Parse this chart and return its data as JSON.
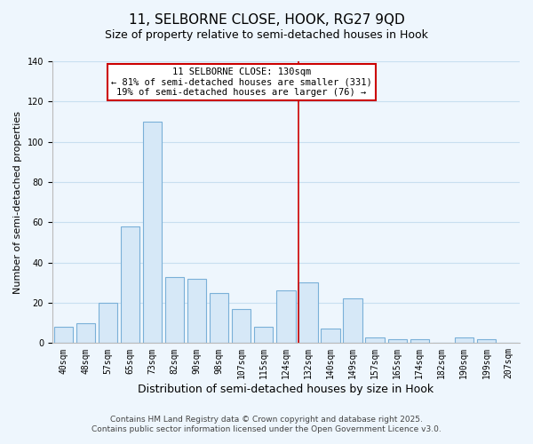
{
  "title": "11, SELBORNE CLOSE, HOOK, RG27 9QD",
  "subtitle": "Size of property relative to semi-detached houses in Hook",
  "xlabel": "Distribution of semi-detached houses by size in Hook",
  "ylabel": "Number of semi-detached properties",
  "bar_labels": [
    "40sqm",
    "48sqm",
    "57sqm",
    "65sqm",
    "73sqm",
    "82sqm",
    "90sqm",
    "98sqm",
    "107sqm",
    "115sqm",
    "124sqm",
    "132sqm",
    "140sqm",
    "149sqm",
    "157sqm",
    "165sqm",
    "174sqm",
    "182sqm",
    "190sqm",
    "199sqm",
    "207sqm"
  ],
  "bar_heights": [
    8,
    10,
    20,
    58,
    110,
    33,
    32,
    25,
    17,
    8,
    26,
    30,
    7,
    22,
    3,
    2,
    2,
    0,
    3,
    2,
    0
  ],
  "bar_color": "#d6e8f7",
  "bar_edge_color": "#7ab0d8",
  "grid_color": "#c8dff0",
  "background_color": "#eef6fd",
  "vline_x_index": 11,
  "vline_color": "#cc0000",
  "annotation_title": "11 SELBORNE CLOSE: 130sqm",
  "annotation_line1": "← 81% of semi-detached houses are smaller (331)",
  "annotation_line2": "19% of semi-detached houses are larger (76) →",
  "footer1": "Contains HM Land Registry data © Crown copyright and database right 2025.",
  "footer2": "Contains public sector information licensed under the Open Government Licence v3.0.",
  "ylim": [
    0,
    140
  ],
  "title_fontsize": 11,
  "subtitle_fontsize": 9,
  "xlabel_fontsize": 9,
  "ylabel_fontsize": 8,
  "tick_fontsize": 7,
  "annotation_fontsize": 7.5,
  "footer_fontsize": 6.5
}
